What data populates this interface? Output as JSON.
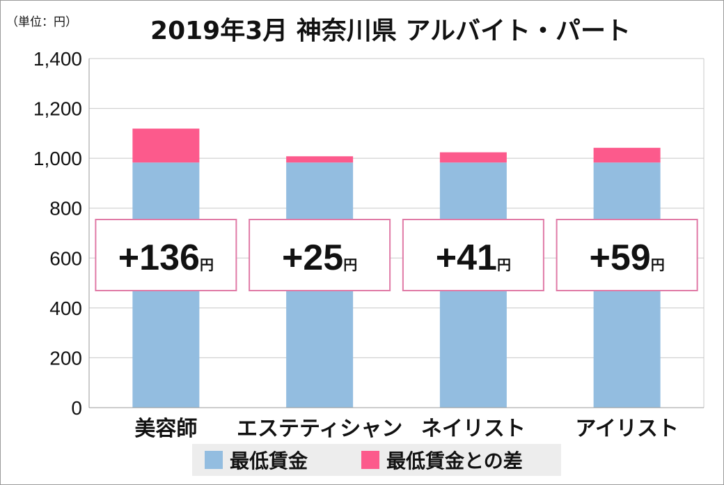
{
  "chart_data": {
    "type": "bar",
    "stacked": true,
    "title": "2019年3月 神奈川県 アルバイト・パート",
    "unit_label": "（単位：円）",
    "categories": [
      "美容師",
      "エステティシャン",
      "ネイリスト",
      "アイリスト"
    ],
    "series": [
      {
        "name": "最低賃金",
        "values": [
          983,
          983,
          983,
          983
        ],
        "color": "#93bde0"
      },
      {
        "name": "最低賃金との差",
        "values": [
          136,
          25,
          41,
          59
        ],
        "color": "#fc5a8c"
      }
    ],
    "annotations": [
      {
        "sign": "+",
        "value": "136",
        "unit": "円"
      },
      {
        "sign": "+",
        "value": "25",
        "unit": "円"
      },
      {
        "sign": "+",
        "value": "41",
        "unit": "円"
      },
      {
        "sign": "+",
        "value": "59",
        "unit": "円"
      }
    ],
    "ylim": [
      0,
      1400
    ],
    "yticks": [
      0,
      200,
      400,
      600,
      800,
      1000,
      1200,
      1400
    ],
    "ytick_labels": [
      "0",
      "200",
      "400",
      "600",
      "800",
      "1,000",
      "1,200",
      "1,400"
    ],
    "grid": true,
    "legend_position": "bottom"
  }
}
